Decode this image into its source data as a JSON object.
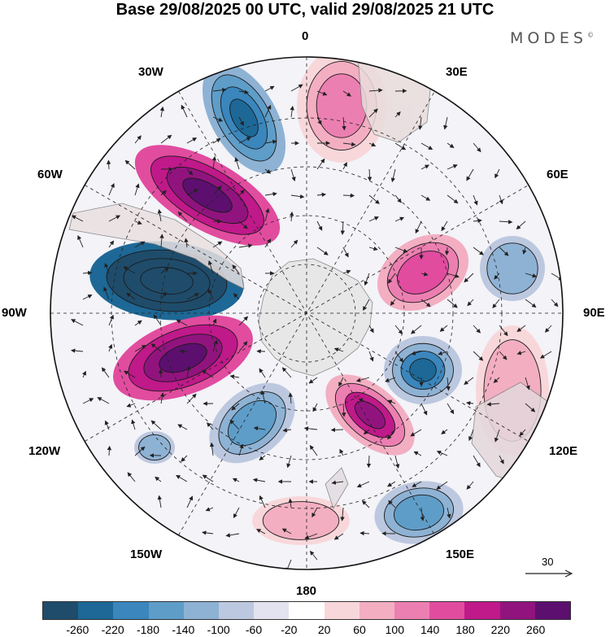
{
  "title": "Base 29/08/2025 00 UTC, valid 29/08/2025 21 UTC",
  "brand": "MODES",
  "brand_mark": "©",
  "map": {
    "projection": "south-polar-stereographic",
    "labels": {
      "top": "0",
      "bottom": "180",
      "left": "90W",
      "right": "90E",
      "nw1": "30W",
      "nw2": "60W",
      "ne1": "30E",
      "ne2": "60E",
      "sw1": "120W",
      "sw2": "150W",
      "se1": "120E",
      "se2": "150E"
    },
    "colors": {
      "land": "#e8e8e8",
      "coast": "#7a7a7a",
      "grid": "#222222",
      "contour": "#1a1a1a"
    }
  },
  "vector_scale": {
    "label": "30"
  },
  "legend": {
    "ticks": [
      "-260",
      "-220",
      "-180",
      "-140",
      "-100",
      "-60",
      "-20",
      "20",
      "60",
      "100",
      "140",
      "180",
      "220",
      "260"
    ],
    "colors": [
      "#1f4c6b",
      "#1d6896",
      "#3a86bd",
      "#5e9dc8",
      "#8eb2d4",
      "#bcc8df",
      "#e3e3ef",
      "#ffffff",
      "#f8d7da",
      "#f3aec2",
      "#ec7fb1",
      "#e14c9f",
      "#c0198a",
      "#91147e",
      "#5c0f6f"
    ]
  }
}
